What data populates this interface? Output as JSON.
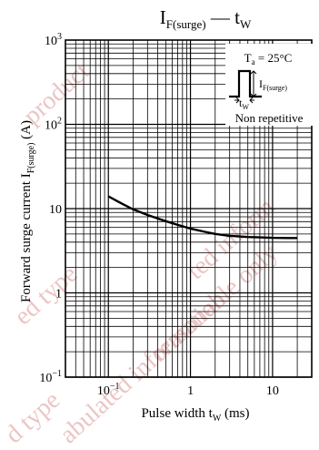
{
  "chart_data": {
    "type": "line",
    "title": {
      "main": "I",
      "main_sub": "F(surge)",
      "sep": " — ",
      "second": "t",
      "second_sub": "W"
    },
    "xlabel": {
      "text": "Pulse width  t",
      "sub": "W",
      "unit": "  (ms)"
    },
    "ylabel": {
      "text": "Forward surge current  I",
      "sub": "F(surge)",
      "unit": "  (A)"
    },
    "x_scale": "log",
    "y_scale": "log",
    "xlim": [
      0.03,
      30
    ],
    "ylim": [
      0.1,
      1000
    ],
    "x_ticks": [
      {
        "base": "10",
        "exp": "−1"
      },
      {
        "base": "1",
        "exp": ""
      },
      {
        "base": "10",
        "exp": ""
      }
    ],
    "y_ticks": [
      {
        "base": "10",
        "exp": "3"
      },
      {
        "base": "10",
        "exp": "2"
      },
      {
        "base": "10",
        "exp": ""
      },
      {
        "base": "1",
        "exp": ""
      },
      {
        "base": "10",
        "exp": "−1"
      }
    ],
    "grid": true,
    "series": [
      {
        "x": [
          0.1,
          0.15,
          0.2,
          0.3,
          0.5,
          0.7,
          1,
          1.5,
          2,
          3,
          5,
          7,
          10,
          15,
          20
        ],
        "y": [
          14,
          11.3,
          9.8,
          8.4,
          7.1,
          6.4,
          5.8,
          5.3,
          5.0,
          4.75,
          4.6,
          4.55,
          4.5,
          4.48,
          4.47
        ]
      }
    ],
    "annotations": {
      "condition": "T",
      "condition_sub": "a",
      "condition_value": " = 25°C",
      "pulse_label": "I",
      "pulse_label_sub": "F(surge)",
      "width_label": "t",
      "width_label_sub": "W",
      "note": "Non repetitive"
    }
  },
  "watermark": [
    "product",
    "ed type",
    "abulated information",
    "reasonable only",
    "d type",
    "ted inform"
  ]
}
